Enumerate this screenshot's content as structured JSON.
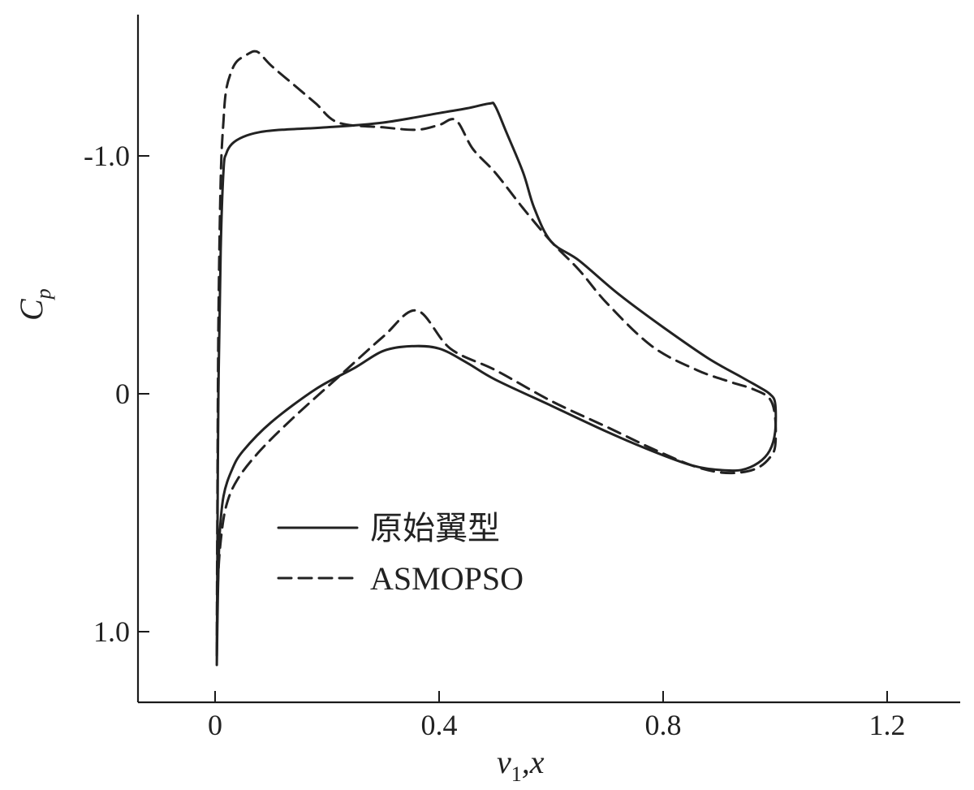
{
  "chart_data": {
    "type": "line",
    "xlabel_main": "v",
    "xlabel_sub": "1",
    "xlabel_tail": ",x",
    "ylabel_main": "C",
    "ylabel_sub": "p",
    "xlim": [
      -0.14,
      1.32
    ],
    "ylim": [
      1.3,
      -1.6
    ],
    "x_inverted_y": true,
    "xticks": [
      {
        "value": 0,
        "label": "0"
      },
      {
        "value": 0.4,
        "label": "0.4"
      },
      {
        "value": 0.8,
        "label": "0.8"
      },
      {
        "value": 1.2,
        "label": "1.2"
      }
    ],
    "yticks": [
      {
        "value": -1.0,
        "label": "-1.0"
      },
      {
        "value": 0,
        "label": "0"
      },
      {
        "value": 1.0,
        "label": "1.0"
      }
    ],
    "legend_position": "center-left",
    "series": [
      {
        "name": "原始翼型",
        "style": "solid",
        "x": [
          0.003,
          0.004,
          0.006,
          0.01,
          0.015,
          0.02,
          0.03,
          0.05,
          0.08,
          0.12,
          0.2,
          0.3,
          0.4,
          0.45,
          0.49,
          0.5,
          0.52,
          0.55,
          0.57,
          0.6,
          0.65,
          0.72,
          0.8,
          0.88,
          0.94,
          0.97,
          0.99,
          1.0,
          1.0,
          0.99,
          0.97,
          0.94,
          0.9,
          0.85,
          0.78,
          0.7,
          0.6,
          0.5,
          0.45,
          0.4,
          0.35,
          0.3,
          0.25,
          0.18,
          0.1,
          0.05,
          0.03,
          0.015,
          0.008,
          0.005,
          0.003
        ],
        "y": [
          1.14,
          0.7,
          0.0,
          -0.6,
          -0.94,
          -1.01,
          -1.05,
          -1.08,
          -1.1,
          -1.11,
          -1.12,
          -1.14,
          -1.18,
          -1.2,
          -1.22,
          -1.21,
          -1.1,
          -0.93,
          -0.78,
          -0.64,
          -0.56,
          -0.42,
          -0.28,
          -0.15,
          -0.07,
          -0.03,
          0.0,
          0.04,
          0.16,
          0.24,
          0.29,
          0.32,
          0.32,
          0.3,
          0.24,
          0.16,
          0.05,
          -0.06,
          -0.13,
          -0.19,
          -0.2,
          -0.18,
          -0.11,
          -0.02,
          0.12,
          0.24,
          0.32,
          0.43,
          0.6,
          0.85,
          1.14
        ]
      },
      {
        "name": "ASMOPSO",
        "style": "dashed",
        "x": [
          0.003,
          0.004,
          0.006,
          0.01,
          0.015,
          0.02,
          0.03,
          0.04,
          0.06,
          0.07,
          0.08,
          0.1,
          0.14,
          0.18,
          0.22,
          0.3,
          0.36,
          0.4,
          0.43,
          0.46,
          0.5,
          0.55,
          0.6,
          0.65,
          0.7,
          0.78,
          0.86,
          0.92,
          0.96,
          0.99,
          1.0,
          1.0,
          0.99,
          0.97,
          0.94,
          0.9,
          0.85,
          0.78,
          0.7,
          0.6,
          0.5,
          0.42,
          0.36,
          0.3,
          0.22,
          0.14,
          0.08,
          0.04,
          0.02,
          0.01,
          0.005,
          0.003
        ],
        "y": [
          1.1,
          0.5,
          -0.3,
          -0.9,
          -1.15,
          -1.28,
          -1.36,
          -1.4,
          -1.43,
          -1.44,
          -1.43,
          -1.38,
          -1.3,
          -1.22,
          -1.14,
          -1.12,
          -1.11,
          -1.13,
          -1.15,
          -1.03,
          -0.93,
          -0.78,
          -0.64,
          -0.52,
          -0.38,
          -0.2,
          -0.1,
          -0.05,
          -0.02,
          0.02,
          0.1,
          0.22,
          0.27,
          0.31,
          0.33,
          0.33,
          0.3,
          0.23,
          0.14,
          0.03,
          -0.1,
          -0.19,
          -0.35,
          -0.24,
          -0.07,
          0.1,
          0.24,
          0.36,
          0.47,
          0.62,
          0.8,
          1.1
        ]
      }
    ]
  }
}
